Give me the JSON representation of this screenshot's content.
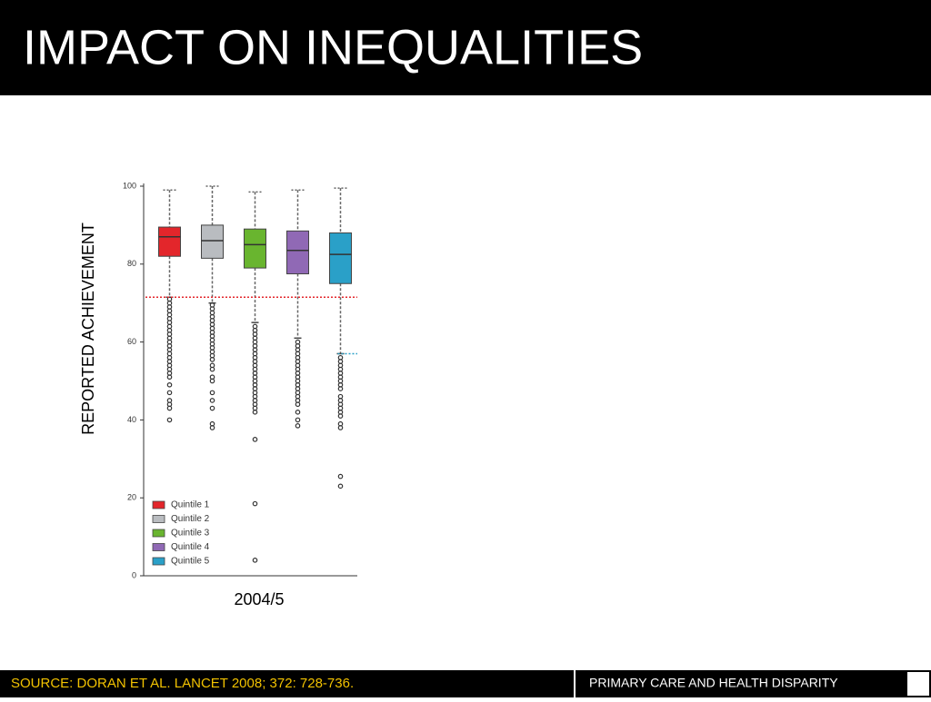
{
  "slide": {
    "title": "IMPACT ON INEQUALITIES",
    "source": "SOURCE: DORAN ET AL. LANCET 2008; 372: 728-736.",
    "footer": "PRIMARY CARE AND HEALTH DISPARITY"
  },
  "chart_data": {
    "type": "box",
    "y_label": "REPORTED ACHIEVEMENT",
    "x_label": "2004/5",
    "categories": [
      "Quintile 1",
      "Quintile 2",
      "Quintile 3",
      "Quintile 4",
      "Quintile 5"
    ],
    "colors": [
      "#e3262b",
      "#b9bcc0",
      "#69b52f",
      "#9069b5",
      "#2aa0c8"
    ],
    "boxes": [
      {
        "whislo": 71.5,
        "q1": 82,
        "med": 87,
        "q3": 89.5,
        "whishi": 99,
        "fliers": [
          71,
          70,
          69,
          68,
          67,
          66,
          65,
          64,
          63,
          62,
          61,
          60,
          59,
          58,
          57,
          56,
          55,
          54,
          53,
          52,
          51,
          49,
          47,
          45,
          44,
          43,
          40
        ]
      },
      {
        "whislo": 70,
        "q1": 81.5,
        "med": 86,
        "q3": 90,
        "whishi": 100,
        "fliers": [
          69.5,
          68.5,
          67.5,
          66.5,
          65.5,
          64.5,
          63.5,
          62.5,
          61.5,
          60.5,
          59.5,
          58.5,
          57.5,
          56.5,
          55.5,
          54,
          53,
          51,
          50,
          47,
          45,
          43,
          39,
          38
        ]
      },
      {
        "whislo": 65,
        "q1": 79,
        "med": 85,
        "q3": 89,
        "whishi": 98.5,
        "fliers": [
          64,
          63,
          62,
          61,
          60,
          59,
          58,
          57,
          56,
          55,
          54,
          53,
          52,
          51,
          50,
          49,
          48,
          47,
          46,
          45,
          44,
          43,
          42,
          35,
          18.5,
          4
        ]
      },
      {
        "whislo": 61,
        "q1": 77.5,
        "med": 83.5,
        "q3": 88.5,
        "whishi": 99,
        "fliers": [
          60,
          59,
          58,
          57,
          56,
          55,
          54,
          53,
          52,
          51,
          50,
          49,
          48,
          47,
          46,
          45,
          44,
          42,
          40,
          38.5
        ]
      },
      {
        "whislo": 57,
        "q1": 75,
        "med": 82.5,
        "q3": 88,
        "whishi": 99.5,
        "fliers": [
          56,
          55,
          54,
          53,
          52,
          51,
          50,
          49,
          48,
          46,
          45,
          44,
          43,
          42,
          41,
          39,
          38,
          25.5,
          23
        ]
      }
    ],
    "reference_lines": [
      {
        "value": 71.5,
        "color": "#e3262b"
      },
      {
        "value": 57,
        "color": "#2aa0c8"
      }
    ],
    "ylim": [
      0,
      100
    ],
    "yticks": [
      0,
      20,
      40,
      60,
      80,
      100
    ]
  }
}
